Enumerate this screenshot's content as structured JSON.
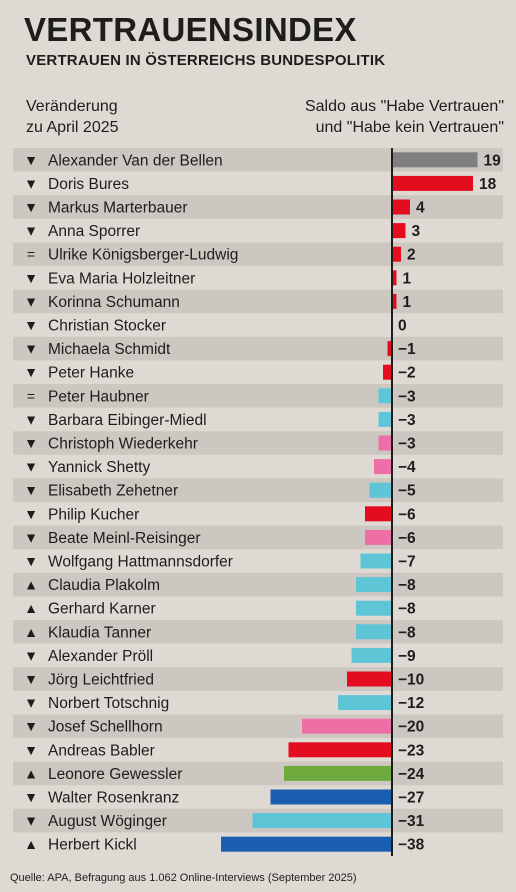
{
  "title": "VERTRAUENSINDEX",
  "subtitle": "VERTRAUEN IN ÖSTERREICHS BUNDESPOLITIK",
  "header_left": [
    "Veränderung",
    "zu April 2025"
  ],
  "header_right": [
    "Saldo aus \"Habe Vertrauen\"",
    "und \"Habe kein Vertrauen\""
  ],
  "source": "Quelle: APA, Befragung aus 1.062 Online-Interviews (September 2025)",
  "colors": {
    "grey": "#7f7e80",
    "red": "#e30d1f",
    "cyan": "#5ec5d6",
    "pink": "#ee6ea6",
    "green": "#6da93c",
    "blue": "#1a5faf",
    "stripe": "#ccc8c1",
    "axis": "#1d1d1b"
  },
  "chart_data": {
    "type": "bar",
    "orientation": "horizontal",
    "categories": [
      "Alexander Van der Bellen",
      "Doris Bures",
      "Markus Marterbauer",
      "Anna Sporrer",
      "Ulrike Königsberger-Ludwig",
      "Eva Maria Holzleitner",
      "Korinna Schumann",
      "Christian Stocker",
      "Michaela Schmidt",
      "Peter Hanke",
      "Peter Haubner",
      "Barbara Eibinger-Miedl",
      "Christoph Wiederkehr",
      "Yannick Shetty",
      "Elisabeth Zehetner",
      "Philip Kucher",
      "Beate Meinl-Reisinger",
      "Wolfgang Hattmannsdorfer",
      "Claudia Plakolm",
      "Gerhard Karner",
      "Klaudia Tanner",
      "Alexander Pröll",
      "Jörg Leichtfried",
      "Norbert Totschnig",
      "Josef Schellhorn",
      "Andreas Babler",
      "Leonore Gewessler",
      "Walter Rosenkranz",
      "August Wöginger",
      "Herbert Kickl"
    ],
    "values": [
      19,
      18,
      4,
      3,
      2,
      1,
      1,
      0,
      -1,
      -2,
      -3,
      -3,
      -3,
      -4,
      -5,
      -6,
      -6,
      -7,
      -8,
      -8,
      -8,
      -9,
      -10,
      -12,
      -20,
      -23,
      -24,
      -27,
      -31,
      -38
    ],
    "labels": [
      "19",
      "18",
      "4",
      "3",
      "2",
      "1",
      "1",
      "0",
      "−1",
      "−2",
      "−3",
      "−3",
      "−3",
      "−4",
      "−5",
      "−6",
      "−6",
      "−7",
      "−8",
      "−8",
      "−8",
      "−9",
      "−10",
      "−12",
      "−20",
      "−23",
      "−24",
      "−27",
      "−31",
      "−38"
    ],
    "change": [
      "▼",
      "▼",
      "▼",
      "▼",
      "=",
      "▼",
      "▼",
      "▼",
      "▼",
      "▼",
      "=",
      "▼",
      "▼",
      "▼",
      "▼",
      "▼",
      "▼",
      "▼",
      "▲",
      "▲",
      "▲",
      "▼",
      "▼",
      "▼",
      "▼",
      "▼",
      "▲",
      "▼",
      "▼",
      "▲"
    ],
    "bar_colors": [
      "grey",
      "red",
      "red",
      "red",
      "red",
      "red",
      "red",
      "red",
      "red",
      "red",
      "cyan",
      "cyan",
      "pink",
      "pink",
      "cyan",
      "red",
      "pink",
      "cyan",
      "cyan",
      "cyan",
      "cyan",
      "cyan",
      "red",
      "cyan",
      "pink",
      "red",
      "green",
      "blue",
      "cyan",
      "blue"
    ],
    "xlim": [
      -38,
      19
    ],
    "grid": false
  }
}
